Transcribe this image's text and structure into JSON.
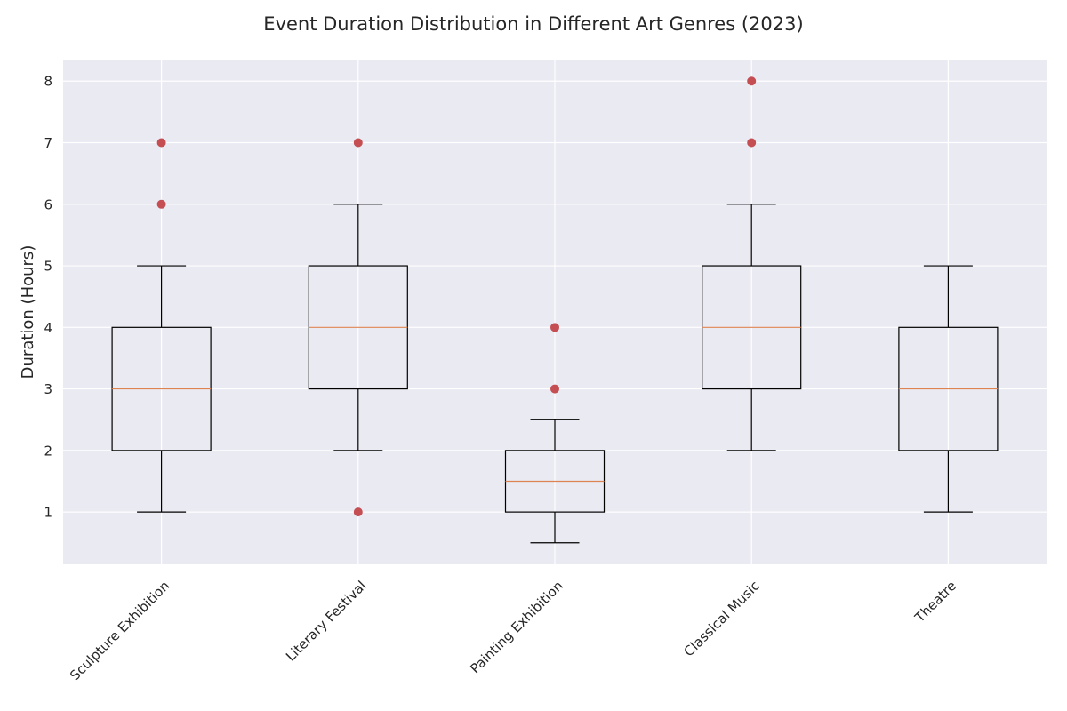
{
  "chart_data": {
    "type": "box",
    "title": "Event Duration Distribution in Different Art Genres (2023)",
    "xlabel": "",
    "ylabel": "Duration (Hours)",
    "ylim": [
      0.15,
      8.35
    ],
    "yticks": [
      1,
      2,
      3,
      4,
      5,
      6,
      7,
      8
    ],
    "grid": true,
    "categories": [
      "Sculpture Exhibition",
      "Literary Festival",
      "Painting Exhibition",
      "Classical Music",
      "Theatre"
    ],
    "boxes": [
      {
        "whisker_low": 1,
        "q1": 2,
        "median": 3,
        "q3": 4,
        "whisker_high": 5,
        "outliers": [
          6,
          7
        ]
      },
      {
        "whisker_low": 2,
        "q1": 3,
        "median": 4,
        "q3": 5,
        "whisker_high": 6,
        "outliers": [
          1,
          7
        ]
      },
      {
        "whisker_low": 0.5,
        "q1": 1,
        "median": 1.5,
        "q3": 2,
        "whisker_high": 2.5,
        "outliers": [
          3,
          4
        ]
      },
      {
        "whisker_low": 2,
        "q1": 3,
        "median": 4,
        "q3": 5,
        "whisker_high": 6,
        "outliers": [
          7,
          8
        ]
      },
      {
        "whisker_low": 1,
        "q1": 2,
        "median": 3,
        "q3": 4,
        "whisker_high": 5,
        "outliers": []
      }
    ],
    "colors": {
      "plot_background": "#eaeaf2",
      "grid": "#ffffff",
      "box": "#000000",
      "median": "#dd8452",
      "outlier": "#c44e52"
    }
  }
}
